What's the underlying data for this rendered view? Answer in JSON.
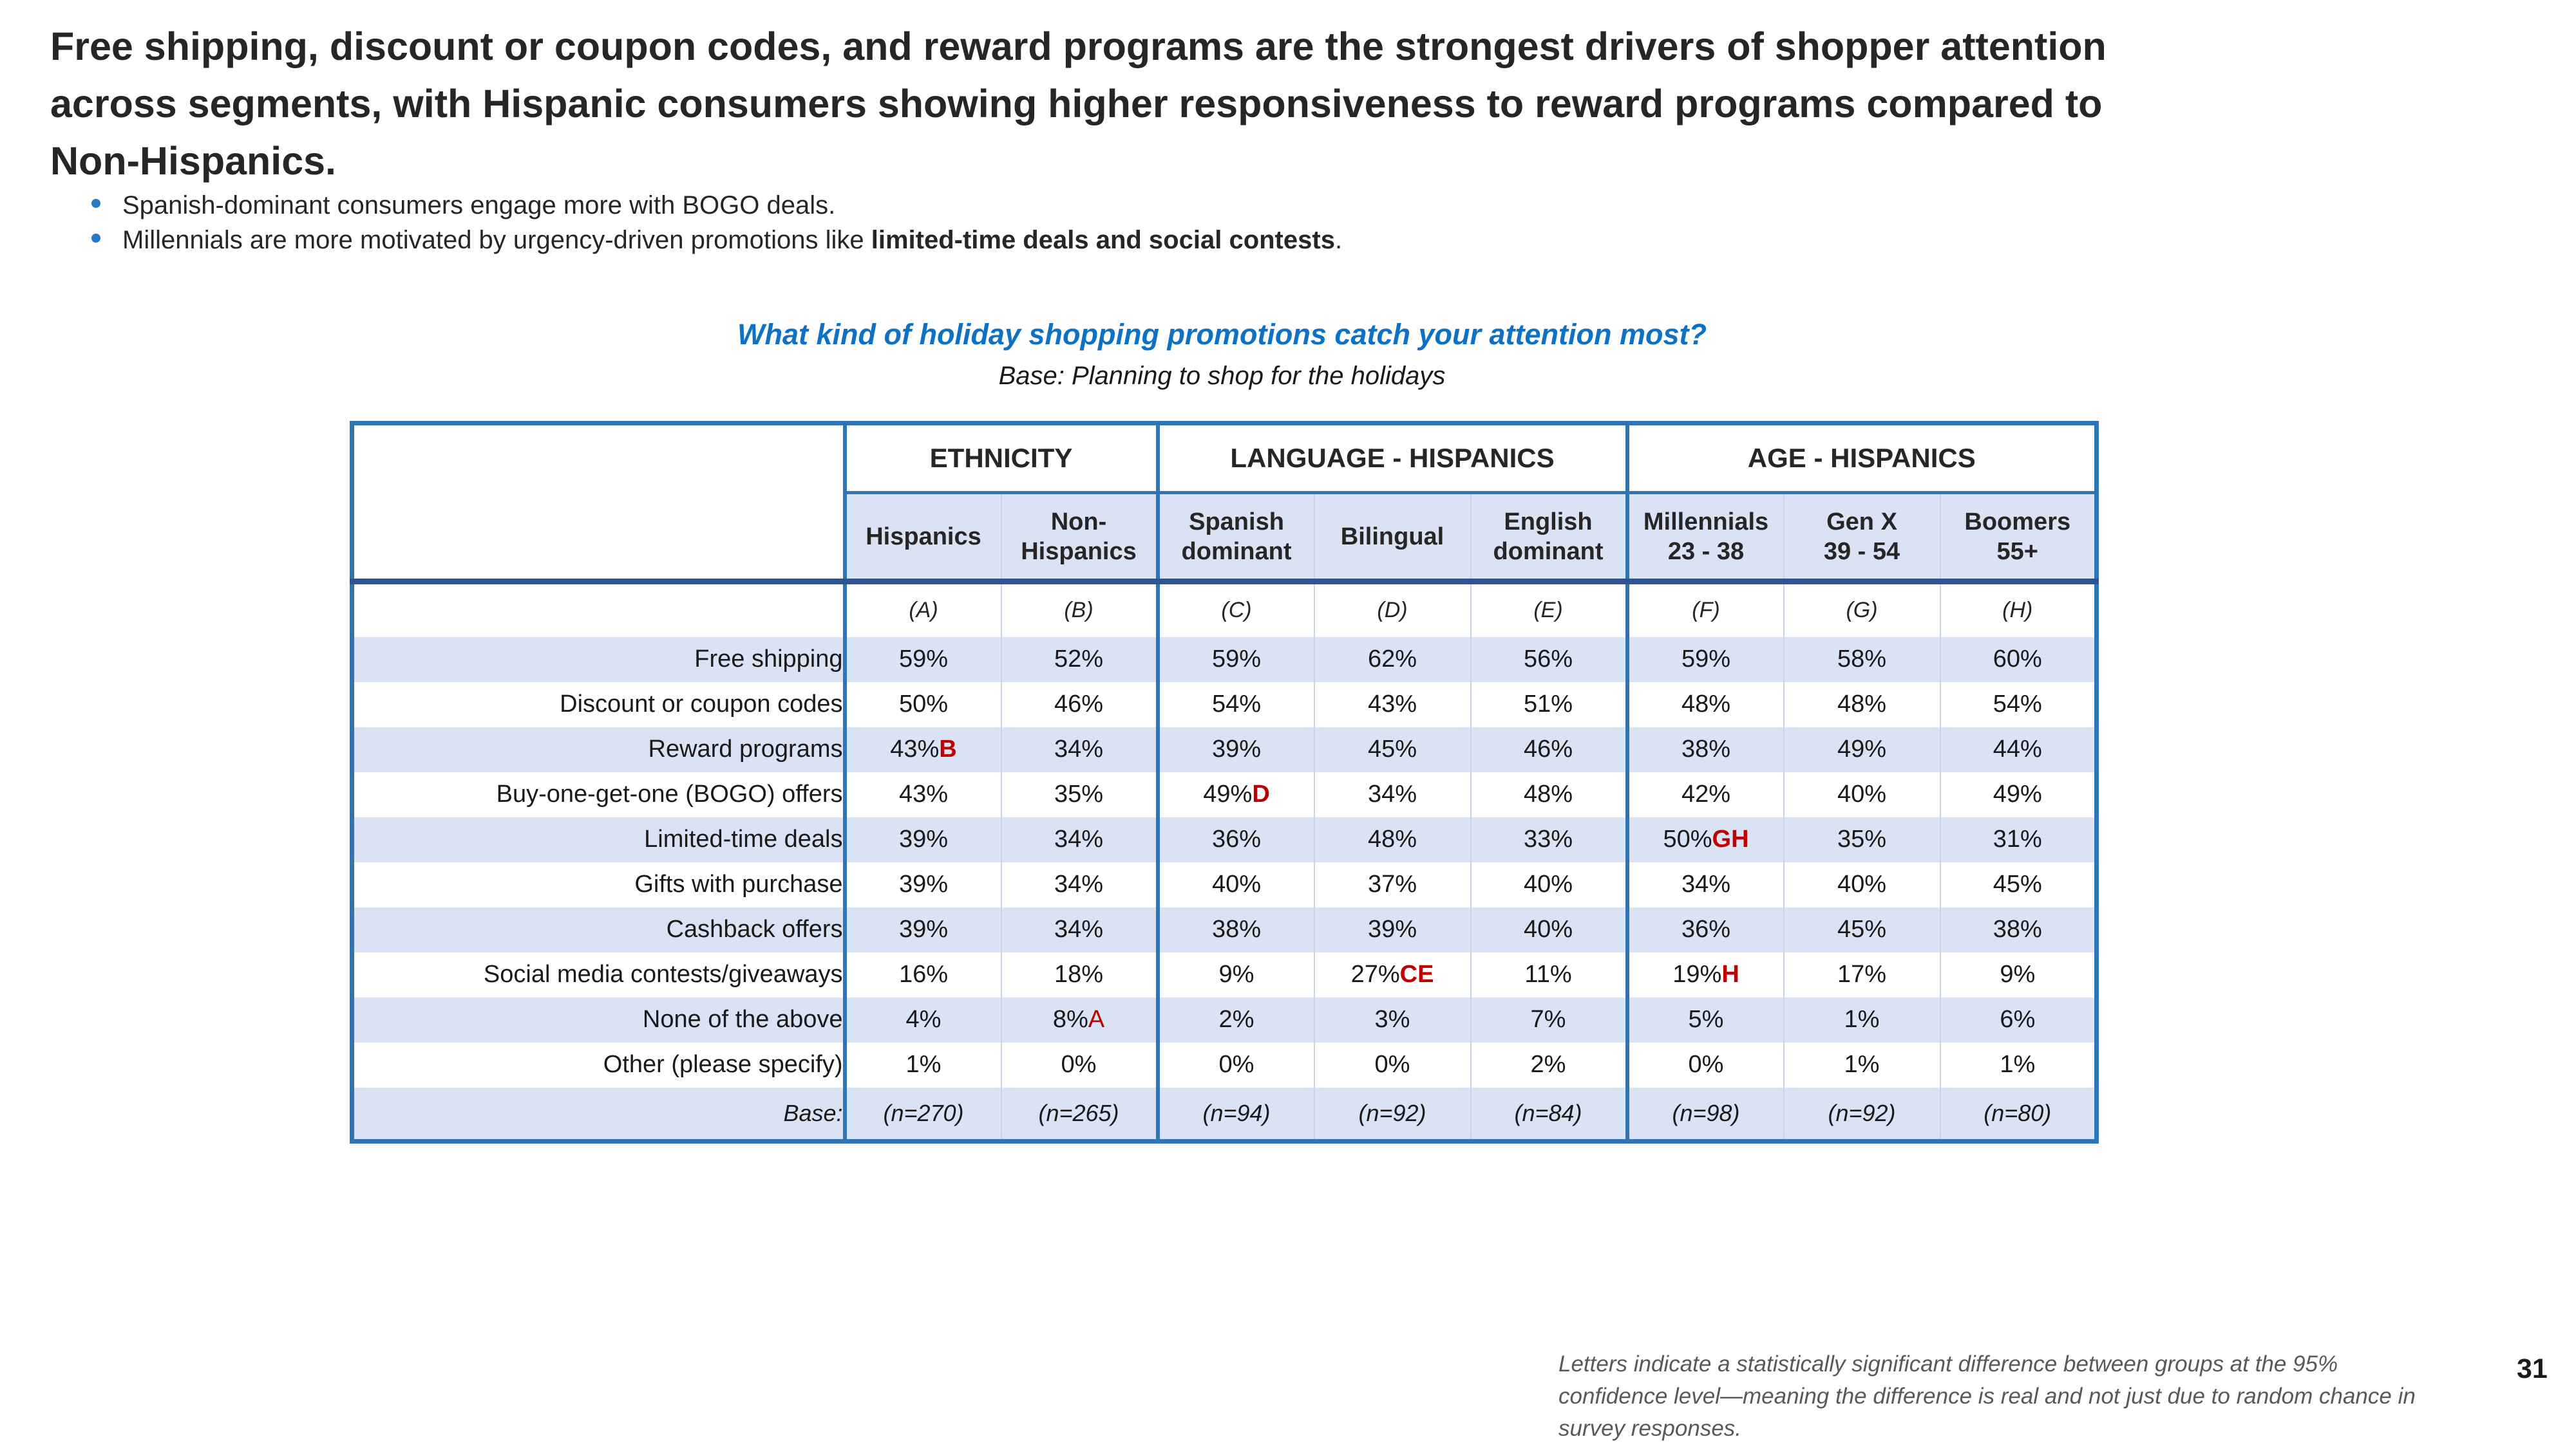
{
  "slide": {
    "title_lines": [
      "Free shipping, discount or coupon codes, and reward programs are the strongest drivers of shopper attention",
      "across segments, with Hispanic consumers showing higher responsiveness to reward programs compared to",
      "Non-Hispanics."
    ],
    "bullets": [
      {
        "pre": "Spanish-dominant consumers engage more with BOGO deals.",
        "bold": "",
        "post": ""
      },
      {
        "pre": "Millennials are more motivated by urgency-driven promotions like ",
        "bold": "limited-time deals and social contests",
        "post": "."
      }
    ],
    "question": "What kind of holiday shopping promotions catch your attention most?",
    "base_note": "Base: Planning to shop for the holidays",
    "footnote_lines": [
      "Letters indicate a statistically significant difference between groups at the 95%",
      "confidence level—meaning the difference is real and not just due to random chance in",
      "survey responses."
    ],
    "page_number": "31"
  },
  "colors": {
    "border_blue": "#2e75b6",
    "heavy_blue": "#2f5496",
    "band_fill": "#dae3f3",
    "sig_red": "#c00000",
    "question_blue": "#0d72c5",
    "bullet_blue": "#2779c2",
    "footnote_gray": "#595959"
  },
  "chart_data": {
    "type": "table",
    "title": "What kind of holiday shopping promotions catch your attention most?",
    "base": "Planning to shop for the holidays",
    "groups": [
      {
        "label": "ETHNICITY",
        "columns": [
          {
            "label": "Hispanics",
            "letter": "(A)"
          },
          {
            "label": "Non-\nHispanics",
            "letter": "(B)"
          }
        ]
      },
      {
        "label": "LANGUAGE - HISPANICS",
        "columns": [
          {
            "label": "Spanish\ndominant",
            "letter": "(C)"
          },
          {
            "label": "Bilingual",
            "letter": "(D)"
          },
          {
            "label": "English\ndominant",
            "letter": "(E)"
          }
        ]
      },
      {
        "label": "AGE - HISPANICS",
        "columns": [
          {
            "label": "Millennials\n23 - 38",
            "letter": "(F)"
          },
          {
            "label": "Gen X\n39 - 54",
            "letter": "(G)"
          },
          {
            "label": "Boomers\n55+",
            "letter": "(H)"
          }
        ]
      }
    ],
    "rows": [
      {
        "label": "Free shipping",
        "cells": [
          {
            "v": "59%"
          },
          {
            "v": "52%"
          },
          {
            "v": "59%"
          },
          {
            "v": "62%"
          },
          {
            "v": "56%"
          },
          {
            "v": "59%"
          },
          {
            "v": "58%"
          },
          {
            "v": "60%"
          }
        ]
      },
      {
        "label": "Discount or coupon codes",
        "cells": [
          {
            "v": "50%"
          },
          {
            "v": "46%"
          },
          {
            "v": "54%"
          },
          {
            "v": "43%"
          },
          {
            "v": "51%"
          },
          {
            "v": "48%"
          },
          {
            "v": "48%"
          },
          {
            "v": "54%"
          }
        ]
      },
      {
        "label": "Reward programs",
        "cells": [
          {
            "v": "43%",
            "s": "B"
          },
          {
            "v": "34%"
          },
          {
            "v": "39%"
          },
          {
            "v": "45%"
          },
          {
            "v": "46%"
          },
          {
            "v": "38%"
          },
          {
            "v": "49%"
          },
          {
            "v": "44%"
          }
        ]
      },
      {
        "label": "Buy-one-get-one (BOGO) offers",
        "cells": [
          {
            "v": "43%"
          },
          {
            "v": "35%"
          },
          {
            "v": "49%",
            "s": "D"
          },
          {
            "v": "34%"
          },
          {
            "v": "48%"
          },
          {
            "v": "42%"
          },
          {
            "v": "40%"
          },
          {
            "v": "49%"
          }
        ]
      },
      {
        "label": "Limited-time deals",
        "cells": [
          {
            "v": "39%"
          },
          {
            "v": "34%"
          },
          {
            "v": "36%"
          },
          {
            "v": "48%"
          },
          {
            "v": "33%"
          },
          {
            "v": "50%",
            "s": "GH"
          },
          {
            "v": "35%"
          },
          {
            "v": "31%"
          }
        ]
      },
      {
        "label": "Gifts with purchase",
        "cells": [
          {
            "v": "39%"
          },
          {
            "v": "34%"
          },
          {
            "v": "40%"
          },
          {
            "v": "37%"
          },
          {
            "v": "40%"
          },
          {
            "v": "34%"
          },
          {
            "v": "40%"
          },
          {
            "v": "45%"
          }
        ]
      },
      {
        "label": "Cashback offers",
        "cells": [
          {
            "v": "39%"
          },
          {
            "v": "34%"
          },
          {
            "v": "38%"
          },
          {
            "v": "39%"
          },
          {
            "v": "40%"
          },
          {
            "v": "36%"
          },
          {
            "v": "45%"
          },
          {
            "v": "38%"
          }
        ]
      },
      {
        "label": "Social media contests/giveaways",
        "cells": [
          {
            "v": "16%"
          },
          {
            "v": "18%"
          },
          {
            "v": "9%"
          },
          {
            "v": "27%",
            "s": "CE"
          },
          {
            "v": "11%"
          },
          {
            "v": "19%",
            "s": "H"
          },
          {
            "v": "17%"
          },
          {
            "v": "9%"
          }
        ]
      },
      {
        "label": "None of the above",
        "cells": [
          {
            "v": "4%"
          },
          {
            "v": "8%",
            "s": "A",
            "light": true
          },
          {
            "v": "2%"
          },
          {
            "v": "3%"
          },
          {
            "v": "7%"
          },
          {
            "v": "5%"
          },
          {
            "v": "1%"
          },
          {
            "v": "6%"
          }
        ]
      },
      {
        "label": "Other (please specify)",
        "cells": [
          {
            "v": "1%"
          },
          {
            "v": "0%"
          },
          {
            "v": "0%"
          },
          {
            "v": "0%"
          },
          {
            "v": "2%"
          },
          {
            "v": "0%"
          },
          {
            "v": "1%"
          },
          {
            "v": "1%"
          }
        ]
      }
    ],
    "base_row": {
      "label": "Base:",
      "cells": [
        {
          "v": "(n=270)"
        },
        {
          "v": "(n=265)"
        },
        {
          "v": "(n=94)"
        },
        {
          "v": "(n=92)"
        },
        {
          "v": "(n=84)"
        },
        {
          "v": "(n=98)"
        },
        {
          "v": "(n=92)"
        },
        {
          "v": "(n=80)"
        }
      ]
    }
  }
}
